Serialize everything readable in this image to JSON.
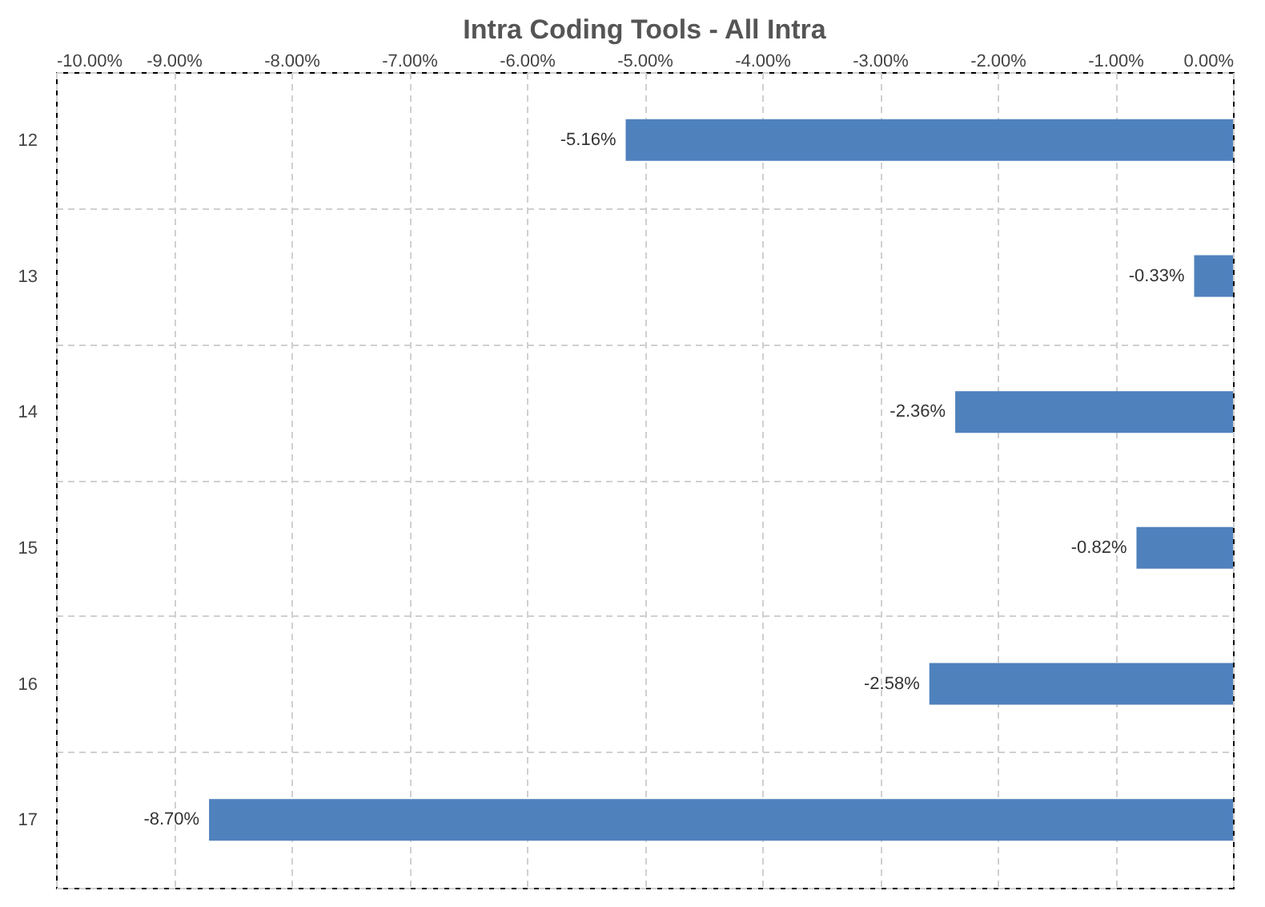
{
  "chart_data": {
    "type": "bar",
    "orientation": "horizontal",
    "title": "Intra Coding Tools - All Intra",
    "categories": [
      "12",
      "13",
      "14",
      "15",
      "16",
      "17"
    ],
    "values": [
      -5.16,
      -0.33,
      -2.36,
      -0.82,
      -2.58,
      -8.7
    ],
    "value_labels": [
      "-5.16%",
      "-0.33%",
      "-2.36%",
      "-0.82%",
      "-2.58%",
      "-8.70%"
    ],
    "color": "#4f81bd",
    "xlim": [
      -10,
      0
    ],
    "xticks": [
      {
        "value": -10,
        "label": "-10.00%"
      },
      {
        "value": -9,
        "label": "-9.00%"
      },
      {
        "value": -8,
        "label": "-8.00%"
      },
      {
        "value": -7,
        "label": "-7.00%"
      },
      {
        "value": -6,
        "label": "-6.00%"
      },
      {
        "value": -5,
        "label": "-5.00%"
      },
      {
        "value": -4,
        "label": "-4.00%"
      },
      {
        "value": -3,
        "label": "-3.00%"
      },
      {
        "value": -2,
        "label": "-2.00%"
      },
      {
        "value": -1,
        "label": "-1.00%"
      },
      {
        "value": 0,
        "label": "0.00%"
      }
    ],
    "grid": true
  }
}
